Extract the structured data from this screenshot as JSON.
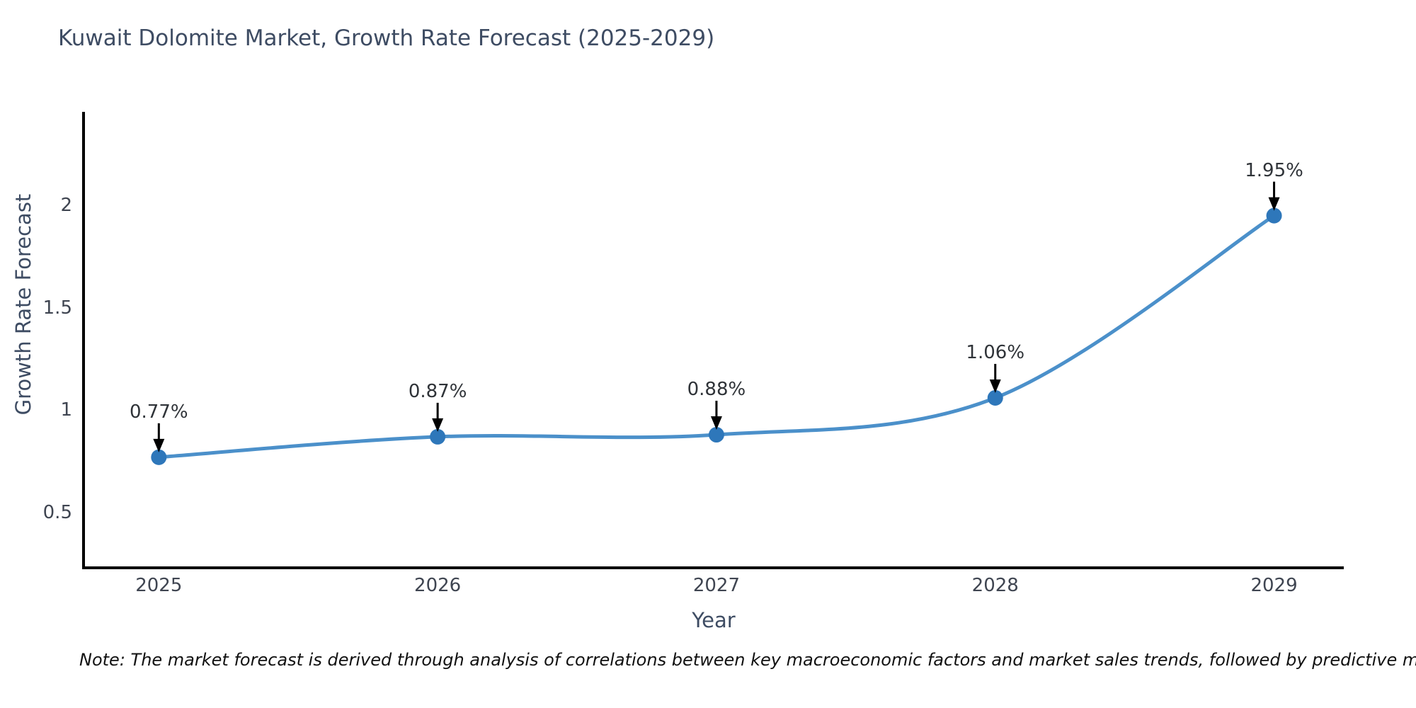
{
  "title": "Kuwait Dolomite Market, Growth Rate Forecast (2025-2029)",
  "note": "Note: The market forecast is derived through analysis of correlations between key macroeconomic factors and market sales trends, followed by predictive modeling to project future sales",
  "chart_data": {
    "type": "line",
    "title": "Kuwait Dolomite Market, Growth Rate Forecast (2025-2029)",
    "xlabel": "Year",
    "ylabel": "Growth Rate Forecast",
    "x": [
      2025,
      2026,
      2027,
      2028,
      2029
    ],
    "values": [
      0.77,
      0.87,
      0.88,
      1.06,
      1.95
    ],
    "point_labels": [
      "0.77%",
      "0.87%",
      "0.88%",
      "1.06%",
      "1.95%"
    ],
    "x_tick_labels": [
      "2025",
      "2026",
      "2027",
      "2028",
      "2029"
    ],
    "y_ticks": [
      0.5,
      1,
      1.5,
      2
    ],
    "xlim": [
      2024.73,
      2029.25
    ],
    "ylim": [
      0.23,
      2.45
    ],
    "grid": false,
    "legend": null,
    "line_shape": "spline",
    "line_color": "#4b90ca",
    "marker_color": "#2e77ba",
    "axis_color": "#000000",
    "annotation_arrow_color": "#000000"
  }
}
